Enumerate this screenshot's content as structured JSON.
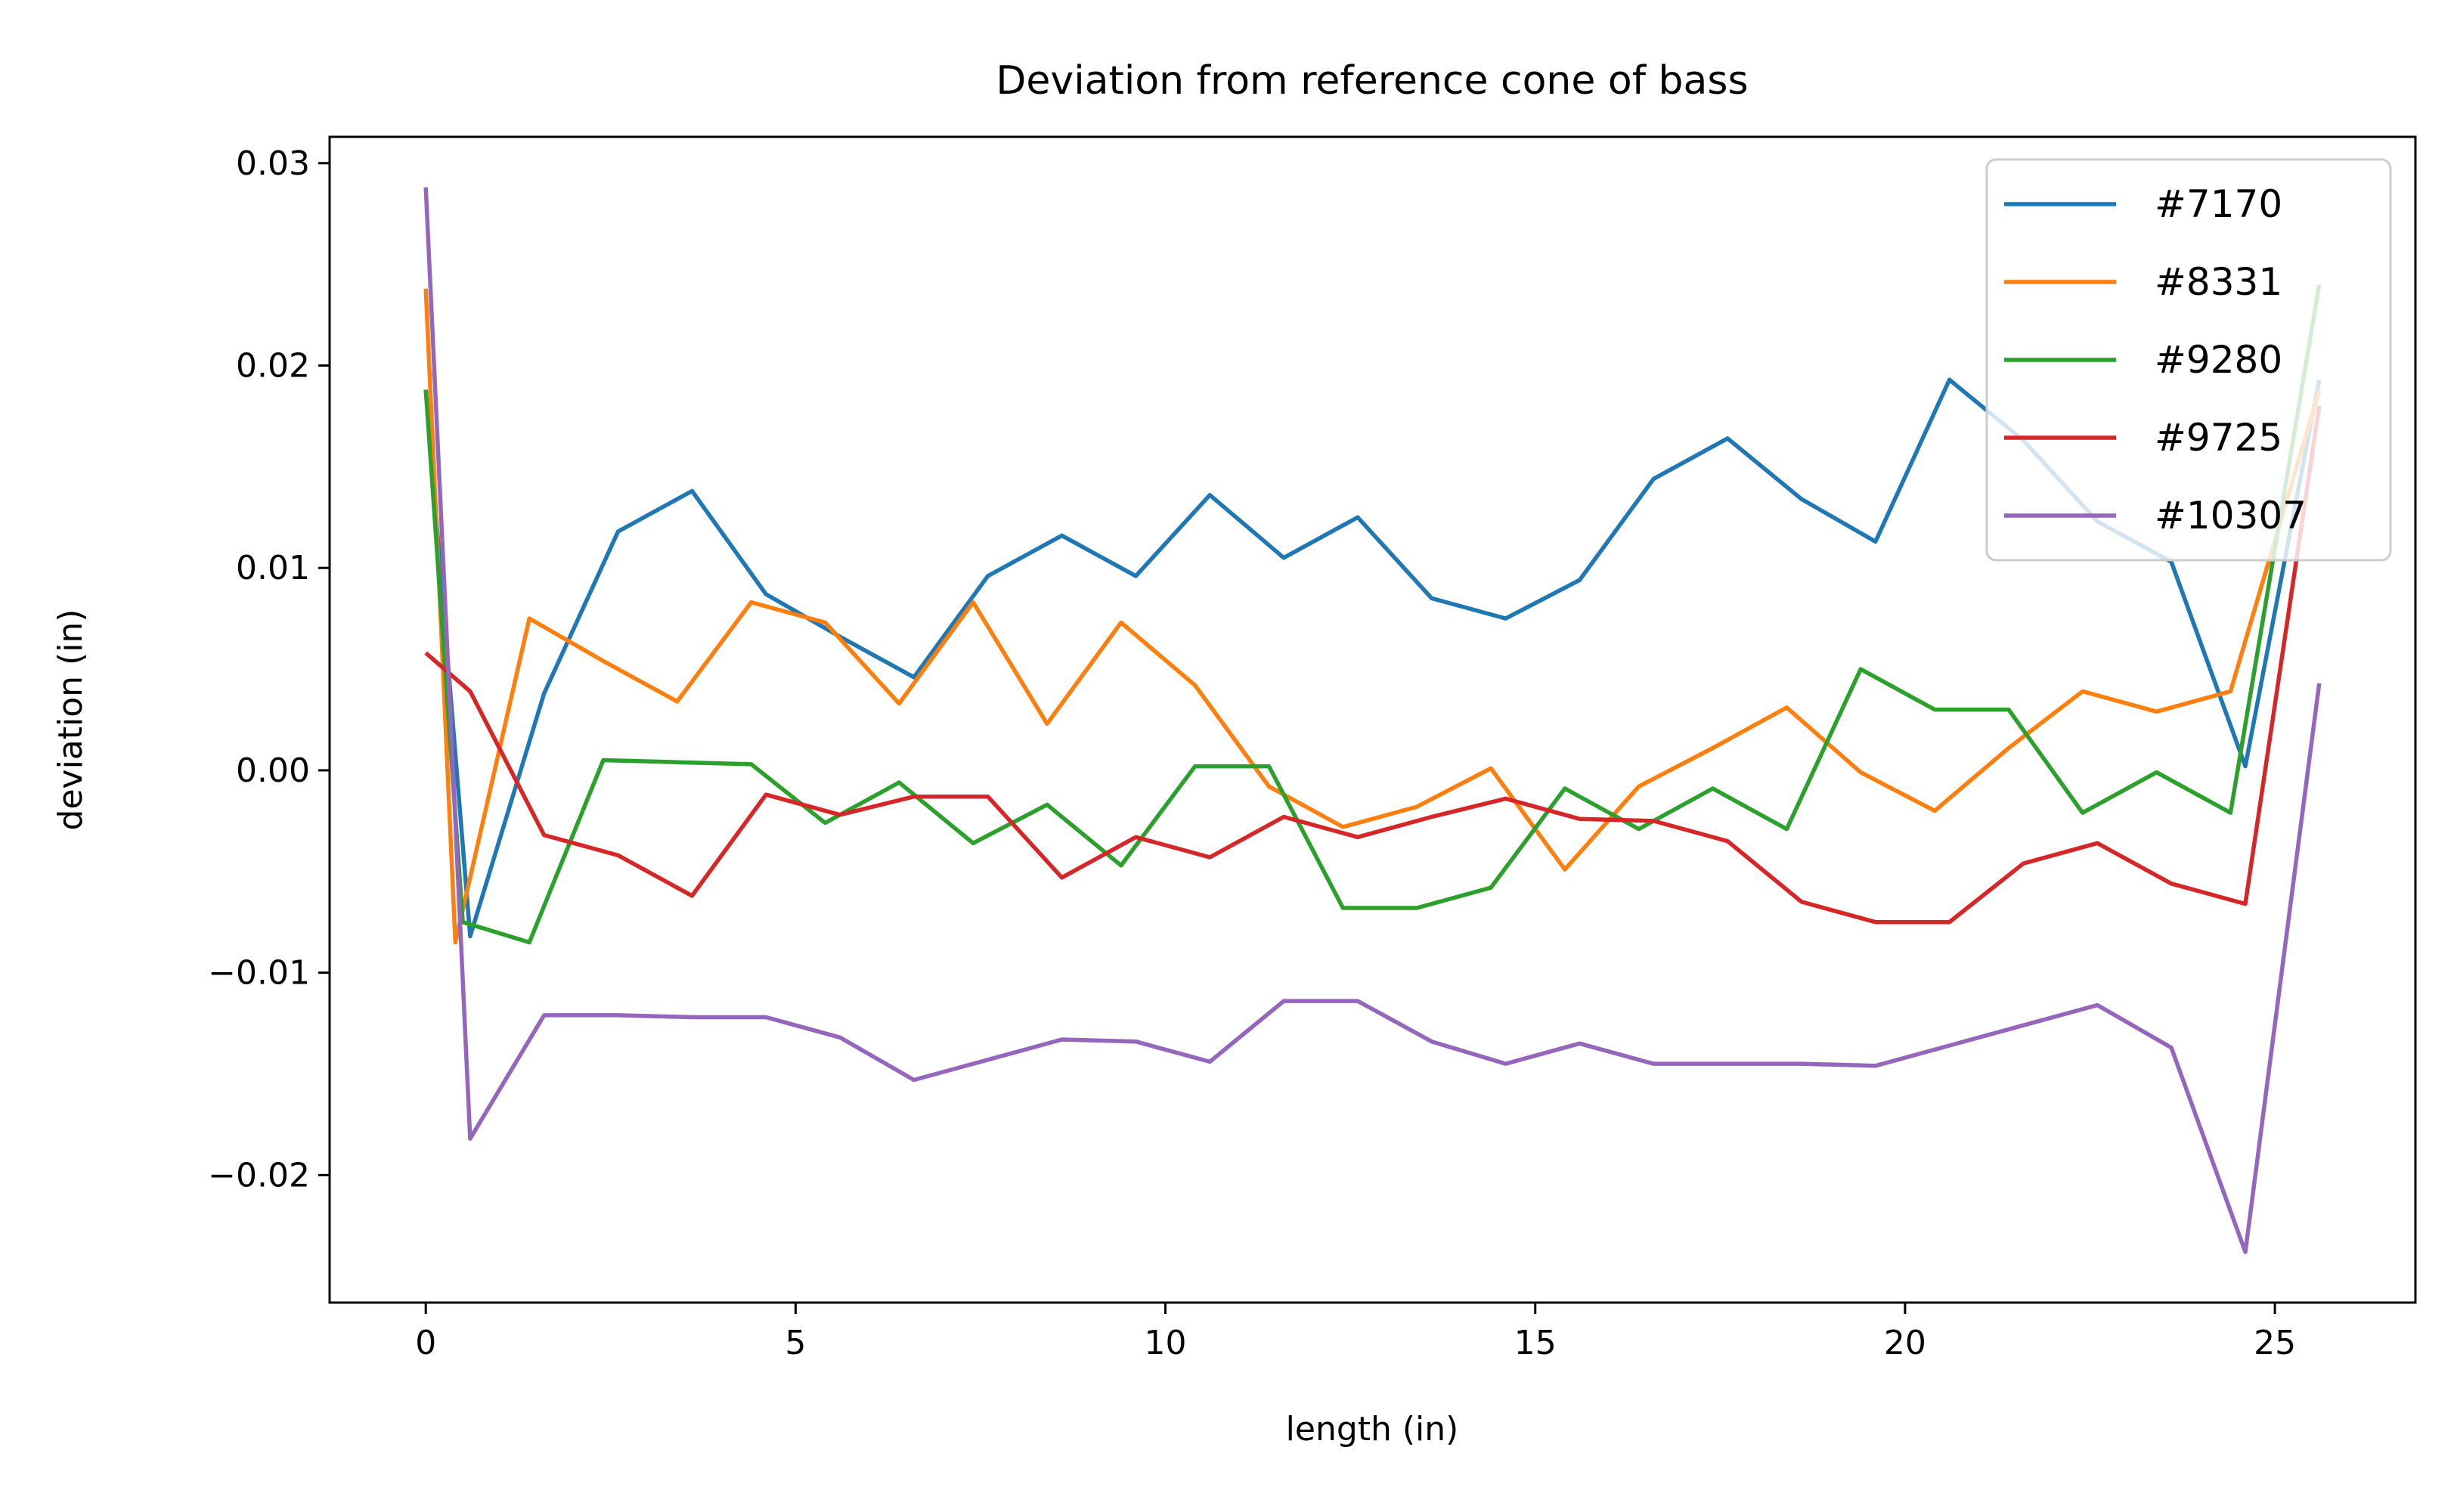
{
  "chart_data": {
    "type": "line",
    "title": "Deviation from reference cone of bass",
    "xlabel": "length (in)",
    "ylabel": "deviation (in)",
    "xlim": [
      -1.3,
      26.9
    ],
    "ylim": [
      -0.0263,
      0.0313
    ],
    "xticks": [
      0,
      5,
      10,
      15,
      20,
      25
    ],
    "xtick_labels": [
      "0",
      "5",
      "10",
      "15",
      "20",
      "25"
    ],
    "yticks": [
      -0.02,
      -0.01,
      0.0,
      0.01,
      0.02,
      0.03
    ],
    "ytick_labels": [
      "−0.02",
      "−0.01",
      "0.00",
      "0.01",
      "0.02",
      "0.03"
    ],
    "grid": false,
    "legend_position": "upper right",
    "series": [
      {
        "name": "#7170",
        "color": "#1f77b4",
        "x": [
          0.0,
          0.6,
          1.6,
          2.6,
          3.6,
          4.6,
          5.6,
          6.6,
          7.6,
          8.6,
          9.6,
          10.6,
          11.6,
          12.6,
          13.6,
          14.6,
          15.6,
          16.6,
          17.6,
          18.6,
          19.6,
          20.6,
          21.6,
          22.6,
          23.6,
          24.6,
          25.6
        ],
        "y": [
          0.0188,
          -0.0082,
          0.0038,
          0.0118,
          0.0138,
          0.0087,
          0.0066,
          0.0046,
          0.0096,
          0.0116,
          0.0096,
          0.0136,
          0.0105,
          0.0125,
          0.0085,
          0.0075,
          0.0094,
          0.0144,
          0.0164,
          0.0134,
          0.0113,
          0.0193,
          0.0163,
          0.0123,
          0.0103,
          0.0002,
          0.0193
        ]
      },
      {
        "name": "#8331",
        "color": "#ff7f0e",
        "x": [
          0.0,
          0.4,
          1.4,
          2.4,
          3.4,
          4.4,
          5.4,
          6.4,
          7.4,
          8.4,
          9.4,
          10.4,
          11.4,
          12.4,
          13.4,
          14.4,
          15.4,
          16.4,
          17.4,
          18.4,
          19.4,
          20.4,
          21.4,
          22.4,
          23.4,
          24.4,
          25.6
        ],
        "y": [
          0.0238,
          -0.0085,
          0.0075,
          0.0054,
          0.0034,
          0.0083,
          0.0073,
          0.0033,
          0.0083,
          0.0023,
          0.0073,
          0.0042,
          -0.0008,
          -0.0028,
          -0.0018,
          0.0001,
          -0.0049,
          -0.0008,
          0.0011,
          0.0031,
          -0.0001,
          -0.002,
          0.0011,
          0.0039,
          0.0029,
          0.0039,
          0.0188
        ]
      },
      {
        "name": "#9280",
        "color": "#2ca02c",
        "x": [
          0.0,
          0.5,
          1.4,
          2.4,
          3.4,
          4.4,
          5.4,
          6.4,
          7.4,
          8.4,
          9.4,
          10.4,
          11.4,
          12.4,
          13.4,
          14.4,
          15.4,
          16.4,
          17.4,
          18.4,
          19.4,
          20.4,
          21.4,
          22.4,
          23.4,
          24.4,
          25.6
        ],
        "y": [
          0.0188,
          -0.0075,
          -0.0085,
          0.0005,
          0.0004,
          0.0003,
          -0.0026,
          -0.0006,
          -0.0036,
          -0.0017,
          -0.0047,
          0.0002,
          0.0002,
          -0.0068,
          -0.0068,
          -0.0058,
          -0.0009,
          -0.0029,
          -0.0009,
          -0.0029,
          0.005,
          0.003,
          0.003,
          -0.0021,
          -0.0001,
          -0.0021,
          0.024
        ]
      },
      {
        "name": "#9725",
        "color": "#d62728",
        "x": [
          0.0,
          0.6,
          1.6,
          2.6,
          3.6,
          4.6,
          5.6,
          6.6,
          7.6,
          8.6,
          9.6,
          10.6,
          11.6,
          12.6,
          13.6,
          14.6,
          15.6,
          16.6,
          17.6,
          18.6,
          19.6,
          20.6,
          21.6,
          22.6,
          23.6,
          24.6,
          25.6
        ],
        "y": [
          0.0058,
          0.0039,
          -0.0032,
          -0.0042,
          -0.0062,
          -0.0012,
          -0.0022,
          -0.0013,
          -0.0013,
          -0.0053,
          -0.0033,
          -0.0043,
          -0.0023,
          -0.0033,
          -0.0023,
          -0.0014,
          -0.0024,
          -0.0025,
          -0.0035,
          -0.0065,
          -0.0075,
          -0.0075,
          -0.0046,
          -0.0036,
          -0.0056,
          -0.0066,
          0.018
        ]
      },
      {
        "name": "#10307",
        "color": "#9467bd",
        "x": [
          0.0,
          0.6,
          1.6,
          2.6,
          3.6,
          4.6,
          5.6,
          6.6,
          7.6,
          8.6,
          9.6,
          10.6,
          11.6,
          12.6,
          13.6,
          14.6,
          15.6,
          16.6,
          17.6,
          18.6,
          19.6,
          20.6,
          21.6,
          22.6,
          23.6,
          24.6,
          25.6
        ],
        "y": [
          0.0288,
          -0.0182,
          -0.0121,
          -0.0121,
          -0.0122,
          -0.0122,
          -0.0132,
          -0.0153,
          -0.0143,
          -0.0133,
          -0.0134,
          -0.0144,
          -0.0114,
          -0.0114,
          -0.0134,
          -0.0145,
          -0.0135,
          -0.0145,
          -0.0145,
          -0.0145,
          -0.0146,
          -0.0136,
          -0.0126,
          -0.0116,
          -0.0137,
          -0.0238,
          0.0043
        ]
      }
    ]
  }
}
